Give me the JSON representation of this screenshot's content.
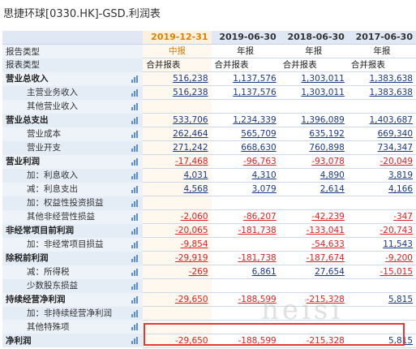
{
  "title": "思捷环球[0330.HK]-GSD.利润表",
  "columns": [
    "2019-12-31",
    "2019-06-30",
    "2018-06-30",
    "2017-06-30"
  ],
  "rows": [
    {
      "label": "报告类型",
      "values": [
        "中报",
        "年报",
        "年报",
        "年报"
      ]
    },
    {
      "label": "报表类型",
      "values": [
        "合并报表",
        "合并报表",
        "合并报表",
        "合并报表"
      ]
    },
    {
      "label": "营业总收入",
      "values": [
        "516,238",
        "1,137,576",
        "1,303,011",
        "1,383,638"
      ]
    },
    {
      "label": "主营业务收入",
      "values": [
        "516,238",
        "1,137,576",
        "1,303,011",
        "1,383,638"
      ]
    },
    {
      "label": "其他营业收入",
      "values": [
        "",
        "",
        "",
        ""
      ]
    },
    {
      "label": "营业总支出",
      "values": [
        "533,706",
        "1,234,339",
        "1,396,089",
        "1,403,687"
      ]
    },
    {
      "label": "营业成本",
      "values": [
        "262,464",
        "565,709",
        "635,192",
        "669,340"
      ]
    },
    {
      "label": "营业开支",
      "values": [
        "271,242",
        "668,630",
        "760,898",
        "734,347"
      ]
    },
    {
      "label": "营业利润",
      "values": [
        "-17,468",
        "-96,763",
        "-93,078",
        "-20,049"
      ]
    },
    {
      "label": "加：利息收入",
      "values": [
        "4,031",
        "4,310",
        "4,890",
        "3,819"
      ]
    },
    {
      "label": "减：利息支出",
      "values": [
        "4,568",
        "3,079",
        "2,614",
        "4,166"
      ]
    },
    {
      "label": "加：权益性投资损益",
      "values": [
        "",
        "",
        "",
        ""
      ]
    },
    {
      "label": "其他非经营性损益",
      "values": [
        "-2,060",
        "-86,207",
        "-42,239",
        "-347"
      ]
    },
    {
      "label": "非经常项目前利润",
      "values": [
        "-20,065",
        "-181,738",
        "-133,041",
        "-20,743"
      ]
    },
    {
      "label": "加：非经常项目损益",
      "values": [
        "-9,854",
        "",
        "-54,633",
        "11,543"
      ]
    },
    {
      "label": "除税前利润",
      "values": [
        "-29,919",
        "-181,738",
        "-187,674",
        "-9,200"
      ]
    },
    {
      "label": "减：所得税",
      "values": [
        "-269",
        "6,861",
        "27,654",
        "-15,015"
      ]
    },
    {
      "label": "少数股东损益",
      "values": [
        "",
        "",
        "",
        ""
      ]
    },
    {
      "label": "持续经营净利润",
      "values": [
        "-29,650",
        "-188,599",
        "-215,328",
        "5,815"
      ]
    },
    {
      "label": "加：非持续经营净利润",
      "values": [
        "",
        "",
        "",
        ""
      ]
    },
    {
      "label": "其他特殊项",
      "values": [
        "",
        "",
        "",
        ""
      ]
    },
    {
      "label": "净利润",
      "values": [
        "-29,650",
        "-188,599",
        "-215,328",
        "5,815"
      ]
    }
  ],
  "watermark": "heisi"
}
